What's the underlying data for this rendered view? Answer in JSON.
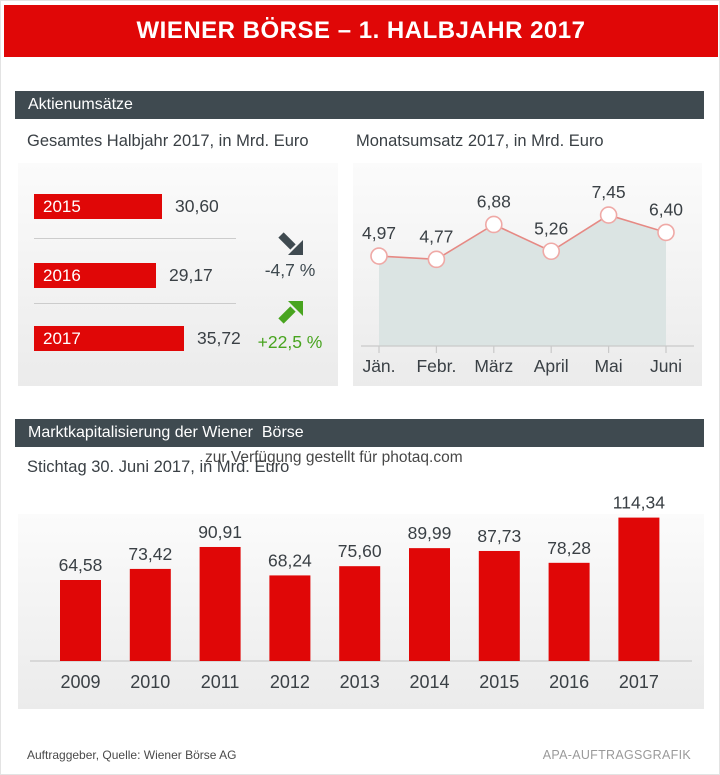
{
  "header": {
    "title": "WIENER BÖRSE – 1. HALBJAHR 2017"
  },
  "sections": {
    "aktienumsaetze": {
      "heading": "Aktienumsätze",
      "halbjahr": {
        "subtitle": "Gesamtes Halbjahr 2017, in Mrd. Euro"
      },
      "monatsumsatz": {
        "subtitle": "Monatsumsatz 2017, in Mrd. Euro"
      }
    },
    "marktkapitalisierung": {
      "heading": "Marktkapitalisierung der Wiener  Börse",
      "subtitle": "Stichtag 30. Juni 2017, in Mrd. Euro"
    }
  },
  "watermark": "zur Verfügung gestellt für photaq.com",
  "footer": {
    "left": "Auftraggeber, Quelle: Wiener Börse AG",
    "right": "APA-AUFTRAGSGRAFIK"
  },
  "colors": {
    "red": "#e00707",
    "slate": "#3f4a50",
    "green": "#48a41f",
    "line": "#e68984",
    "marker_stroke": "#efa9a6",
    "area_fill": "#d9e3e1",
    "axis": "#c9c9c9",
    "text": "#3a4045"
  },
  "chart_data": [
    {
      "id": "halbjahr-umsatz",
      "type": "bar",
      "orientation": "horizontal",
      "title": "Gesamtes Halbjahr 2017, in Mrd. Euro",
      "categories": [
        "2015",
        "2016",
        "2017"
      ],
      "values": [
        30.6,
        29.17,
        35.72
      ],
      "value_labels": [
        "30,60",
        "29,17",
        "35,72"
      ],
      "ylabel": "Mrd. Euro",
      "changes": [
        {
          "between": "2015→2016",
          "label": "-4,7 %",
          "direction": "down",
          "color": "#3f4a50"
        },
        {
          "between": "2016→2017",
          "label": "+22,5 %",
          "direction": "up",
          "color": "#48a41f"
        }
      ]
    },
    {
      "id": "monatsumsatz-2017",
      "type": "area",
      "title": "Monatsumsatz 2017, in Mrd. Euro",
      "categories": [
        "Jän.",
        "Febr.",
        "März",
        "April",
        "Mai",
        "Juni"
      ],
      "values": [
        4.97,
        4.77,
        6.88,
        5.26,
        7.45,
        6.4
      ],
      "value_labels": [
        "4,97",
        "4,77",
        "6,88",
        "5,26",
        "7,45",
        "6,40"
      ],
      "ylabel": "Mrd. Euro",
      "grid": false,
      "legend": false
    },
    {
      "id": "marktkapitalisierung",
      "type": "bar",
      "orientation": "vertical",
      "title": "Marktkapitalisierung der Wiener Börse, Stichtag 30. Juni 2017, in Mrd. Euro",
      "categories": [
        "2009",
        "2010",
        "2011",
        "2012",
        "2013",
        "2014",
        "2015",
        "2016",
        "2017"
      ],
      "values": [
        64.58,
        73.42,
        90.91,
        68.24,
        75.6,
        89.99,
        87.73,
        78.28,
        114.34
      ],
      "value_labels": [
        "64,58",
        "73,42",
        "90,91",
        "68,24",
        "75,60",
        "89,99",
        "87,73",
        "78,28",
        "114,34"
      ],
      "ylabel": "Mrd. Euro",
      "grid": false,
      "legend": false
    }
  ]
}
